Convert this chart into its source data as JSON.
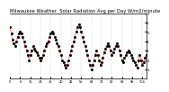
{
  "title": "Milwaukee Weather  Solar Radiation Avg per Day W/m2/minute",
  "values": [
    5.5,
    4.8,
    4.2,
    3.8,
    3.5,
    4.0,
    4.5,
    4.8,
    5.0,
    4.8,
    4.5,
    4.0,
    3.5,
    3.0,
    2.5,
    2.0,
    2.5,
    3.0,
    3.5,
    3.2,
    3.0,
    2.8,
    2.5,
    2.2,
    2.0,
    2.2,
    2.5,
    3.0,
    3.5,
    3.8,
    4.0,
    4.5,
    4.8,
    5.0,
    4.8,
    4.5,
    4.2,
    3.8,
    3.5,
    3.0,
    2.5,
    2.0,
    1.8,
    1.5,
    1.2,
    1.5,
    2.0,
    2.5,
    3.0,
    3.5,
    4.0,
    4.5,
    5.0,
    5.5,
    5.8,
    5.5,
    5.0,
    4.5,
    4.0,
    3.5,
    3.0,
    2.5,
    2.0,
    1.5,
    1.0,
    1.5,
    2.0,
    2.5,
    3.0,
    2.5,
    2.0,
    1.5,
    1.8,
    2.2,
    2.8,
    3.2,
    3.5,
    3.8,
    3.5,
    3.0,
    2.5,
    2.8,
    3.2,
    3.5,
    3.8,
    3.5,
    3.0,
    2.5,
    2.0,
    1.8,
    2.2,
    2.5,
    2.8,
    3.0,
    2.8,
    2.5,
    2.2,
    2.0,
    1.8,
    1.5,
    1.2,
    2.0,
    2.5,
    2.0,
    1.5,
    1.8,
    2.2,
    2.5
  ],
  "line_color": "#ff0000",
  "marker_color": "#000000",
  "bg_color": "#ffffff",
  "grid_color": "#b0b0b0",
  "ylim": [
    0.0,
    7.0
  ],
  "ytick_values": [
    1,
    2,
    3,
    4,
    5,
    6,
    7
  ],
  "n_vert_grid": 13,
  "title_fontsize": 3.8,
  "tick_fontsize": 3.0,
  "linewidth": 0.6,
  "markersize": 1.0
}
